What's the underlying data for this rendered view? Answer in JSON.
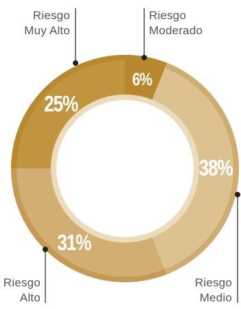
{
  "chart_data": {
    "type": "pie",
    "style": "donut",
    "title": "",
    "slices": [
      {
        "label_line1": "Riesgo",
        "label_line2": "Moderado",
        "value": 6,
        "value_label": "6%",
        "color": "#b8862c",
        "ring_color": "#b88a30"
      },
      {
        "label_line1": "Riesgo",
        "label_line2": "Medio",
        "value": 38,
        "value_label": "38%",
        "color": "#dcc291",
        "ring_color": "#cfac70"
      },
      {
        "label_line1": "Riesgo",
        "label_line2": "Alto",
        "value": 31,
        "value_label": "31%",
        "color": "#d1af72",
        "ring_color": "#c49a55"
      },
      {
        "label_line1": "Riesgo",
        "label_line2": "Muy Alto",
        "value": 25,
        "value_label": "25%",
        "color": "#c1953f",
        "ring_color": "#b88a30"
      }
    ],
    "legend": "none",
    "label_color": "#555555",
    "inner_ring_color": "#ecdcbd"
  }
}
